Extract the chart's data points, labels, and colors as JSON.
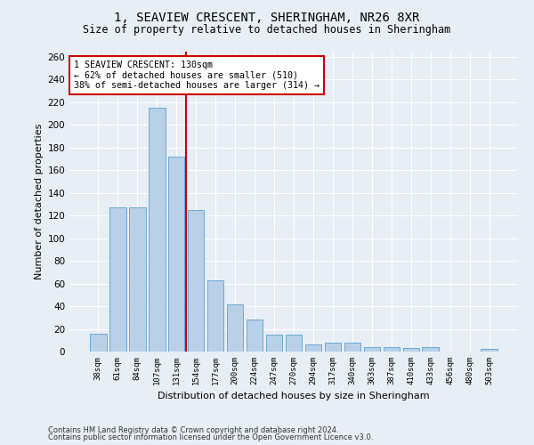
{
  "title": "1, SEAVIEW CRESCENT, SHERINGHAM, NR26 8XR",
  "subtitle": "Size of property relative to detached houses in Sheringham",
  "xlabel": "Distribution of detached houses by size in Sheringham",
  "ylabel": "Number of detached properties",
  "categories": [
    "38sqm",
    "61sqm",
    "84sqm",
    "107sqm",
    "131sqm",
    "154sqm",
    "177sqm",
    "200sqm",
    "224sqm",
    "247sqm",
    "270sqm",
    "294sqm",
    "317sqm",
    "340sqm",
    "363sqm",
    "387sqm",
    "410sqm",
    "433sqm",
    "456sqm",
    "480sqm",
    "503sqm"
  ],
  "values": [
    16,
    127,
    127,
    215,
    172,
    125,
    63,
    42,
    28,
    15,
    15,
    6,
    8,
    8,
    4,
    4,
    3,
    4,
    0,
    0,
    2
  ],
  "bar_color": "#b8d0e8",
  "bar_edge_color": "#6aaad4",
  "background_color": "#e8eef6",
  "grid_color": "#ffffff",
  "vline_x": 4.5,
  "vline_color": "#cc0000",
  "annotation_text": "1 SEAVIEW CRESCENT: 130sqm\n← 62% of detached houses are smaller (510)\n38% of semi-detached houses are larger (314) →",
  "annotation_box_color": "#ffffff",
  "annotation_box_edge": "#cc0000",
  "ylim": [
    0,
    265
  ],
  "yticks": [
    0,
    20,
    40,
    60,
    80,
    100,
    120,
    140,
    160,
    180,
    200,
    220,
    240,
    260
  ],
  "footer1": "Contains HM Land Registry data © Crown copyright and database right 2024.",
  "footer2": "Contains public sector information licensed under the Open Government Licence v3.0.",
  "title_fontsize": 10,
  "subtitle_fontsize": 8.5,
  "xlabel_fontsize": 8,
  "ylabel_fontsize": 8
}
